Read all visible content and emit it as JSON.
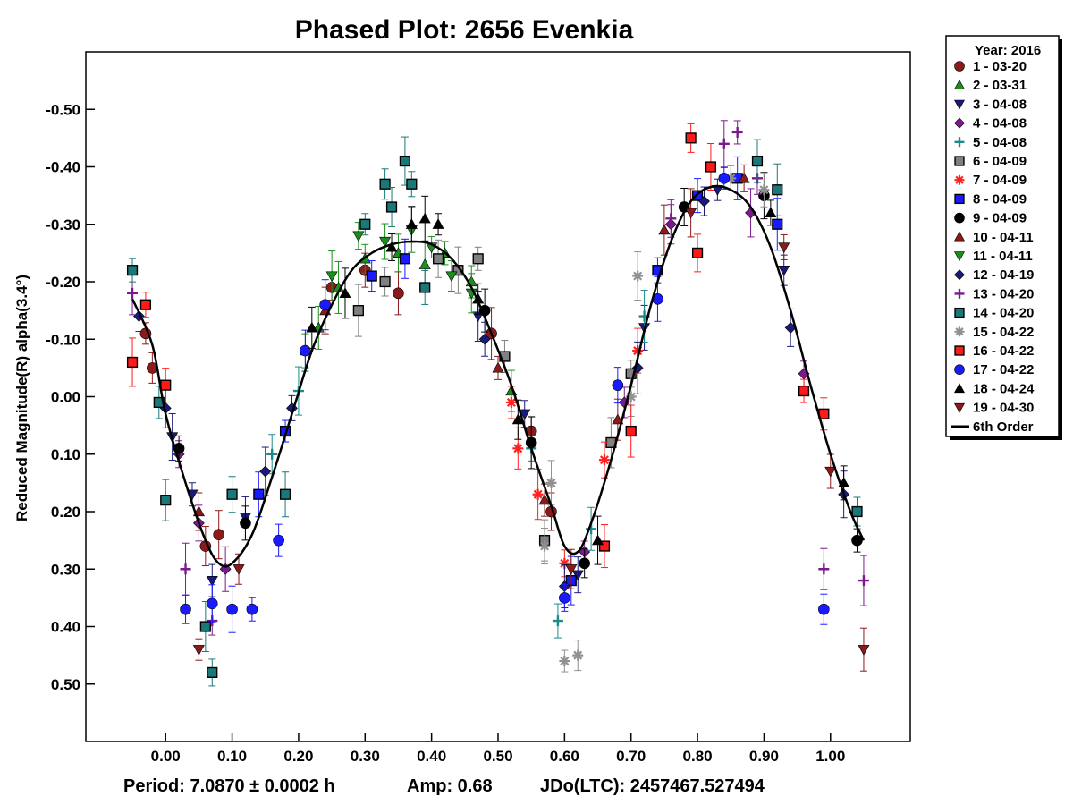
{
  "chart_data": {
    "type": "scatter",
    "title": "Phased Plot: 2656 Evenkia",
    "xlabel": "",
    "ylabel": "Reduced Magnitude(R) alpha(3.4°)",
    "xlim": [
      -0.12,
      1.12
    ],
    "ylim": [
      0.6,
      -0.6
    ],
    "y_inverted": true,
    "x_ticks": [
      0.0,
      0.1,
      0.2,
      0.3,
      0.4,
      0.5,
      0.6,
      0.7,
      0.8,
      0.9,
      1.0
    ],
    "x_tick_labels": [
      "0.00",
      "0.10",
      "0.20",
      "0.30",
      "0.40",
      "0.50",
      "0.60",
      "0.70",
      "0.80",
      "0.90",
      "1.00"
    ],
    "y_ticks": [
      -0.5,
      -0.4,
      -0.3,
      -0.2,
      -0.1,
      0.0,
      0.1,
      0.2,
      0.3,
      0.4,
      0.5
    ],
    "y_tick_labels": [
      "-0.50",
      "-0.40",
      "-0.30",
      "-0.20",
      "-0.10",
      "0.00",
      "0.10",
      "0.20",
      "0.30",
      "0.40",
      "0.50"
    ],
    "grid": false,
    "legend_position": "right-outside-top",
    "legend_title": "Year: 2016",
    "footer": {
      "period": "Period: 7.0870 ± 0.0002 h",
      "amp": "Amp: 0.68",
      "jd": "JDo(LTC): 2457467.527494"
    },
    "fit": {
      "name": "6th Order",
      "points": [
        [
          -0.05,
          -0.17
        ],
        [
          -0.02,
          -0.09
        ],
        [
          0.0,
          0.03
        ],
        [
          0.03,
          0.15
        ],
        [
          0.06,
          0.25
        ],
        [
          0.08,
          0.29
        ],
        [
          0.1,
          0.29
        ],
        [
          0.13,
          0.24
        ],
        [
          0.16,
          0.14
        ],
        [
          0.19,
          0.03
        ],
        [
          0.22,
          -0.08
        ],
        [
          0.25,
          -0.16
        ],
        [
          0.28,
          -0.22
        ],
        [
          0.31,
          -0.25
        ],
        [
          0.34,
          -0.265
        ],
        [
          0.37,
          -0.27
        ],
        [
          0.4,
          -0.265
        ],
        [
          0.43,
          -0.24
        ],
        [
          0.46,
          -0.19
        ],
        [
          0.49,
          -0.11
        ],
        [
          0.52,
          -0.02
        ],
        [
          0.55,
          0.09
        ],
        [
          0.58,
          0.19
        ],
        [
          0.6,
          0.26
        ],
        [
          0.62,
          0.27
        ],
        [
          0.64,
          0.22
        ],
        [
          0.67,
          0.11
        ],
        [
          0.7,
          -0.02
        ],
        [
          0.73,
          -0.16
        ],
        [
          0.76,
          -0.27
        ],
        [
          0.79,
          -0.34
        ],
        [
          0.82,
          -0.365
        ],
        [
          0.85,
          -0.36
        ],
        [
          0.88,
          -0.33
        ],
        [
          0.91,
          -0.26
        ],
        [
          0.94,
          -0.15
        ],
        [
          0.97,
          -0.02
        ],
        [
          1.0,
          0.1
        ],
        [
          1.03,
          0.2
        ],
        [
          1.05,
          0.25
        ]
      ]
    },
    "series": [
      {
        "name": "1 - 03-20",
        "marker": "circle",
        "color": "#8b1a1a",
        "points": [
          [
            -0.03,
            -0.11
          ],
          [
            -0.02,
            -0.05
          ],
          [
            0.06,
            0.26
          ],
          [
            0.08,
            0.24
          ],
          [
            0.25,
            -0.19
          ],
          [
            0.3,
            -0.22
          ],
          [
            0.35,
            -0.18
          ],
          [
            0.49,
            -0.11
          ],
          [
            0.55,
            0.06
          ],
          [
            0.58,
            0.2
          ]
        ]
      },
      {
        "name": "2 - 03-31",
        "marker": "triangle-up",
        "color": "#1e8c1e",
        "points": [
          [
            0.21,
            -0.08
          ],
          [
            0.23,
            -0.12
          ],
          [
            0.26,
            -0.19
          ],
          [
            0.3,
            -0.24
          ],
          [
            0.35,
            -0.25
          ],
          [
            0.39,
            -0.23
          ],
          [
            0.42,
            -0.25
          ],
          [
            0.46,
            -0.2
          ],
          [
            0.52,
            -0.01
          ]
        ]
      },
      {
        "name": "3 - 04-08",
        "marker": "triangle-down",
        "color": "#1a1a7a",
        "points": [
          [
            0.01,
            0.07
          ],
          [
            0.04,
            0.17
          ],
          [
            0.07,
            0.32
          ],
          [
            0.12,
            0.21
          ],
          [
            0.47,
            -0.14
          ],
          [
            0.54,
            0.03
          ],
          [
            0.62,
            0.31
          ],
          [
            0.72,
            -0.12
          ],
          [
            0.83,
            -0.36
          ],
          [
            0.93,
            -0.22
          ]
        ]
      },
      {
        "name": "4 - 04-08",
        "marker": "diamond",
        "color": "#7a1a8c",
        "points": [
          [
            0.02,
            0.1
          ],
          [
            0.05,
            0.22
          ],
          [
            0.09,
            0.3
          ],
          [
            0.63,
            0.27
          ],
          [
            0.69,
            0.01
          ],
          [
            0.76,
            -0.3
          ],
          [
            0.88,
            -0.32
          ],
          [
            0.96,
            -0.04
          ]
        ]
      },
      {
        "name": "5 - 04-08",
        "marker": "plus",
        "color": "#1a8a8a",
        "points": [
          [
            0.16,
            0.1
          ],
          [
            0.2,
            -0.01
          ],
          [
            0.55,
            0.09
          ],
          [
            0.59,
            0.39
          ],
          [
            0.64,
            0.23
          ],
          [
            0.72,
            -0.14
          ]
        ]
      },
      {
        "name": "6 - 04-09",
        "marker": "square",
        "color": "#808080",
        "points": [
          [
            0.29,
            -0.15
          ],
          [
            0.33,
            -0.2
          ],
          [
            0.41,
            -0.24
          ],
          [
            0.44,
            -0.22
          ],
          [
            0.47,
            -0.24
          ],
          [
            0.51,
            -0.07
          ],
          [
            0.57,
            0.25
          ],
          [
            0.67,
            0.08
          ],
          [
            0.7,
            -0.04
          ]
        ]
      },
      {
        "name": "7 - 04-09",
        "marker": "asterisk",
        "color": "#ff2020",
        "points": [
          [
            0.52,
            0.01
          ],
          [
            0.53,
            0.09
          ],
          [
            0.56,
            0.17
          ],
          [
            0.6,
            0.29
          ],
          [
            0.66,
            0.11
          ],
          [
            0.71,
            -0.08
          ]
        ]
      },
      {
        "name": "8 - 04-09",
        "marker": "square",
        "color": "#1a1aff",
        "points": [
          [
            0.14,
            0.17
          ],
          [
            0.18,
            0.06
          ],
          [
            0.31,
            -0.21
          ],
          [
            0.36,
            -0.24
          ],
          [
            0.61,
            0.32
          ],
          [
            0.74,
            -0.22
          ],
          [
            0.8,
            -0.35
          ],
          [
            0.86,
            -0.38
          ],
          [
            0.92,
            -0.3
          ]
        ]
      },
      {
        "name": "9 - 04-09",
        "marker": "circle",
        "color": "#000000",
        "points": [
          [
            0.02,
            0.09
          ],
          [
            0.12,
            0.22
          ],
          [
            0.48,
            -0.15
          ],
          [
            0.55,
            0.08
          ],
          [
            0.63,
            0.29
          ],
          [
            0.78,
            -0.33
          ],
          [
            0.9,
            -0.35
          ],
          [
            1.04,
            0.25
          ]
        ]
      },
      {
        "name": "10 - 04-11",
        "marker": "triangle-up",
        "color": "#8b1a1a",
        "points": [
          [
            0.05,
            0.2
          ],
          [
            0.24,
            -0.15
          ],
          [
            0.5,
            -0.05
          ],
          [
            0.57,
            0.18
          ],
          [
            0.68,
            0.04
          ],
          [
            0.75,
            -0.29
          ],
          [
            0.87,
            -0.38
          ]
        ]
      },
      {
        "name": "11 - 04-11",
        "marker": "triangle-down",
        "color": "#1e8c1e",
        "points": [
          [
            0.25,
            -0.21
          ],
          [
            0.29,
            -0.28
          ],
          [
            0.33,
            -0.27
          ],
          [
            0.37,
            -0.29
          ],
          [
            0.4,
            -0.26
          ],
          [
            0.43,
            -0.21
          ],
          [
            0.46,
            -0.18
          ]
        ]
      },
      {
        "name": "12 - 04-19",
        "marker": "diamond",
        "color": "#1a1a7a",
        "points": [
          [
            -0.04,
            -0.14
          ],
          [
            0.0,
            0.02
          ],
          [
            0.15,
            0.13
          ],
          [
            0.19,
            0.02
          ],
          [
            0.48,
            -0.1
          ],
          [
            0.6,
            0.33
          ],
          [
            0.71,
            -0.05
          ],
          [
            0.81,
            -0.34
          ],
          [
            0.94,
            -0.12
          ],
          [
            1.02,
            0.17
          ]
        ]
      },
      {
        "name": "13 - 04-20",
        "marker": "plus",
        "color": "#7a1a8c",
        "points": [
          [
            -0.05,
            -0.18
          ],
          [
            0.03,
            0.3
          ],
          [
            0.07,
            0.39
          ],
          [
            0.76,
            -0.31
          ],
          [
            0.84,
            -0.44
          ],
          [
            0.86,
            -0.46
          ],
          [
            0.89,
            -0.38
          ],
          [
            0.99,
            0.3
          ],
          [
            1.05,
            0.32
          ]
        ]
      },
      {
        "name": "14 - 04-20",
        "marker": "square",
        "color": "#1a7878",
        "points": [
          [
            -0.05,
            -0.22
          ],
          [
            -0.01,
            0.01
          ],
          [
            0.0,
            0.18
          ],
          [
            0.06,
            0.4
          ],
          [
            0.07,
            0.48
          ],
          [
            0.1,
            0.17
          ],
          [
            0.18,
            0.17
          ],
          [
            0.3,
            -0.3
          ],
          [
            0.33,
            -0.37
          ],
          [
            0.34,
            -0.33
          ],
          [
            0.36,
            -0.41
          ],
          [
            0.37,
            -0.37
          ],
          [
            0.39,
            -0.19
          ],
          [
            0.89,
            -0.41
          ],
          [
            0.92,
            -0.36
          ],
          [
            1.04,
            0.2
          ]
        ]
      },
      {
        "name": "15 - 04-22",
        "marker": "asterisk",
        "color": "#909090",
        "points": [
          [
            0.57,
            0.26
          ],
          [
            0.58,
            0.15
          ],
          [
            0.6,
            0.46
          ],
          [
            0.62,
            0.45
          ],
          [
            0.7,
            0.0
          ],
          [
            0.71,
            -0.21
          ],
          [
            0.85,
            -0.38
          ],
          [
            0.9,
            -0.36
          ]
        ]
      },
      {
        "name": "16 - 04-22",
        "marker": "square",
        "color": "#ff1a1a",
        "points": [
          [
            -0.05,
            -0.06
          ],
          [
            -0.03,
            -0.16
          ],
          [
            0.0,
            -0.02
          ],
          [
            0.66,
            0.26
          ],
          [
            0.7,
            0.06
          ],
          [
            0.79,
            -0.45
          ],
          [
            0.8,
            -0.25
          ],
          [
            0.82,
            -0.4
          ],
          [
            0.96,
            -0.01
          ],
          [
            0.99,
            0.03
          ]
        ]
      },
      {
        "name": "17 - 04-22",
        "marker": "circle",
        "color": "#1a1aff",
        "points": [
          [
            0.03,
            0.37
          ],
          [
            0.07,
            0.36
          ],
          [
            0.1,
            0.37
          ],
          [
            0.13,
            0.37
          ],
          [
            0.17,
            0.25
          ],
          [
            0.21,
            -0.08
          ],
          [
            0.24,
            -0.16
          ],
          [
            0.6,
            0.35
          ],
          [
            0.68,
            -0.02
          ],
          [
            0.74,
            -0.17
          ],
          [
            0.84,
            -0.38
          ],
          [
            0.99,
            0.37
          ]
        ]
      },
      {
        "name": "18 - 04-24",
        "marker": "triangle-up",
        "color": "#000000",
        "points": [
          [
            0.22,
            -0.12
          ],
          [
            0.27,
            -0.18
          ],
          [
            0.34,
            -0.26
          ],
          [
            0.37,
            -0.3
          ],
          [
            0.39,
            -0.31
          ],
          [
            0.41,
            -0.3
          ],
          [
            0.47,
            -0.17
          ],
          [
            0.53,
            0.04
          ],
          [
            0.65,
            0.25
          ],
          [
            0.91,
            -0.32
          ],
          [
            1.02,
            0.15
          ]
        ]
      },
      {
        "name": "19 - 04-30",
        "marker": "triangle-down",
        "color": "#8b1a1a",
        "points": [
          [
            0.05,
            0.44
          ],
          [
            0.11,
            0.3
          ],
          [
            0.61,
            0.3
          ],
          [
            0.79,
            -0.32
          ],
          [
            0.93,
            -0.26
          ],
          [
            1.0,
            0.13
          ],
          [
            1.05,
            0.44
          ]
        ]
      }
    ]
  }
}
